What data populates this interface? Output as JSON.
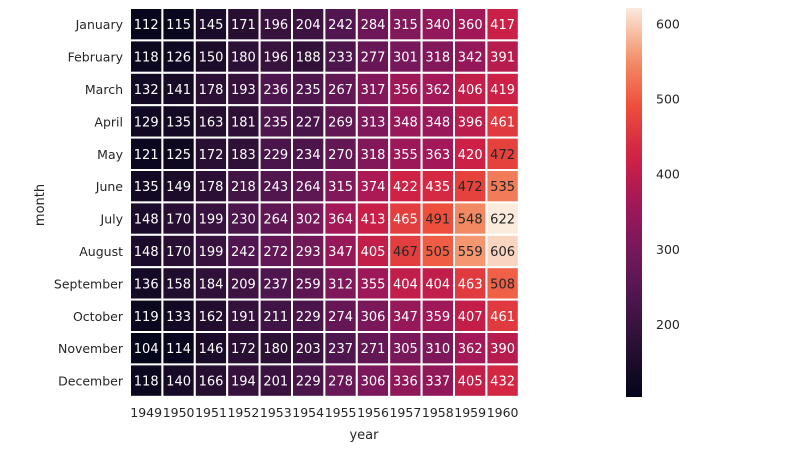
{
  "chart_data": {
    "type": "heatmap",
    "xlabel": "year",
    "ylabel": "month",
    "x_categories": [
      "1949",
      "1950",
      "1951",
      "1952",
      "1953",
      "1954",
      "1955",
      "1956",
      "1957",
      "1958",
      "1959",
      "1960"
    ],
    "y_categories": [
      "January",
      "February",
      "March",
      "April",
      "May",
      "June",
      "July",
      "August",
      "September",
      "October",
      "November",
      "December"
    ],
    "values": [
      [
        112,
        115,
        145,
        171,
        196,
        204,
        242,
        284,
        315,
        340,
        360,
        417
      ],
      [
        118,
        126,
        150,
        180,
        196,
        188,
        233,
        277,
        301,
        318,
        342,
        391
      ],
      [
        132,
        141,
        178,
        193,
        236,
        235,
        267,
        317,
        356,
        362,
        406,
        419
      ],
      [
        129,
        135,
        163,
        181,
        235,
        227,
        269,
        313,
        348,
        348,
        396,
        461
      ],
      [
        121,
        125,
        172,
        183,
        229,
        234,
        270,
        318,
        355,
        363,
        420,
        472
      ],
      [
        135,
        149,
        178,
        218,
        243,
        264,
        315,
        374,
        422,
        435,
        472,
        535
      ],
      [
        148,
        170,
        199,
        230,
        264,
        302,
        364,
        413,
        465,
        491,
        548,
        622
      ],
      [
        148,
        170,
        199,
        242,
        272,
        293,
        347,
        405,
        467,
        505,
        559,
        606
      ],
      [
        136,
        158,
        184,
        209,
        237,
        259,
        312,
        355,
        404,
        404,
        463,
        508
      ],
      [
        119,
        133,
        162,
        191,
        211,
        229,
        274,
        306,
        347,
        359,
        407,
        461
      ],
      [
        104,
        114,
        146,
        172,
        180,
        203,
        237,
        271,
        305,
        310,
        362,
        390
      ],
      [
        118,
        140,
        166,
        194,
        201,
        229,
        278,
        306,
        336,
        337,
        405,
        432
      ]
    ],
    "annotations": "cell values shown",
    "colormap": "rocket",
    "colorbar": {
      "min": 104,
      "max": 622,
      "ticks": [
        200,
        300,
        400,
        500,
        600
      ]
    },
    "cell_border_color": "#ffffff"
  }
}
